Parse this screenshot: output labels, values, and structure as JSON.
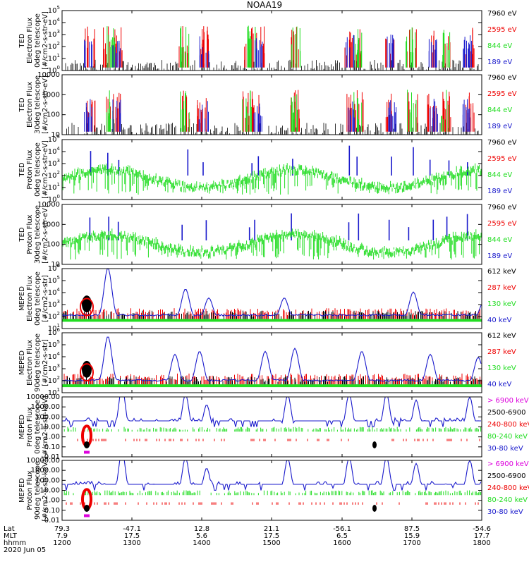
{
  "title": "NOAA19",
  "colors": {
    "black": "#000000",
    "red": "#ee0000",
    "green": "#22dd22",
    "blue": "#1a1acc",
    "magenta": "#dd00dd"
  },
  "chart_data": [
    {
      "type": "line",
      "ylabel": [
        "TED",
        "Electron Flux",
        "0deg telescope",
        "[#/cm2-s-str-eV]"
      ],
      "yscale": "log",
      "ylim": [
        1,
        100000
      ],
      "yticks": [
        "10^0",
        "10^1",
        "10^2",
        "10^3",
        "10^4",
        "10^5"
      ],
      "legend": [
        {
          "label": "7960 eV",
          "color": "black"
        },
        {
          "label": "2595 eV",
          "color": "red"
        },
        {
          "label": "844 eV",
          "color": "green"
        },
        {
          "label": "189 eV",
          "color": "blue"
        }
      ]
    },
    {
      "type": "line",
      "ylabel": [
        "TED",
        "Electron Flux",
        "30deg telescope",
        "[#/cm2-s-str-eV]"
      ],
      "yscale": "log",
      "ylim": [
        3,
        10000
      ],
      "yticks": [
        "10",
        "100",
        "1000",
        "10000"
      ],
      "legend": [
        {
          "label": "7960 eV",
          "color": "black"
        },
        {
          "label": "2595 eV",
          "color": "red"
        },
        {
          "label": "844 eV",
          "color": "green"
        },
        {
          "label": "189 eV",
          "color": "blue"
        }
      ]
    },
    {
      "type": "line",
      "ylabel": [
        "TED",
        "Proton Flux",
        "0deg telescope",
        "[#/cm2-s-str-eV]"
      ],
      "yscale": "log",
      "ylim": [
        1,
        100000
      ],
      "yticks": [
        "10^0",
        "10^1",
        "10^2",
        "10^3",
        "10^4",
        "10^5"
      ],
      "legend": [
        {
          "label": "7960 eV",
          "color": "black"
        },
        {
          "label": "2595 eV",
          "color": "red"
        },
        {
          "label": "844 eV",
          "color": "green"
        },
        {
          "label": "189 eV",
          "color": "blue"
        }
      ]
    },
    {
      "type": "line",
      "ylabel": [
        "TED",
        "Proton Flux",
        "30deg telescope",
        "[#/cm2-s-str-eV]"
      ],
      "yscale": "log",
      "ylim": [
        3,
        10000
      ],
      "yticks": [
        "10",
        "100",
        "1000",
        "10000"
      ],
      "legend": [
        {
          "label": "7960 eV",
          "color": "black"
        },
        {
          "label": "2595 eV",
          "color": "red"
        },
        {
          "label": "844 eV",
          "color": "green"
        },
        {
          "label": "189 eV",
          "color": "blue"
        }
      ]
    },
    {
      "type": "line",
      "ylabel": [
        "MEPED",
        "Electron Flux",
        "0deg telescope",
        "[#/cm2-s-str]"
      ],
      "yscale": "log",
      "ylim": [
        10,
        1000000
      ],
      "yticks": [
        "10^1",
        "10^2",
        "10^3",
        "10^4",
        "10^5",
        "10^6"
      ],
      "legend": [
        {
          "label": "612 keV",
          "color": "black"
        },
        {
          "label": "287 keV",
          "color": "red"
        },
        {
          "label": "130 keV",
          "color": "green"
        },
        {
          "label": "40 keV",
          "color": "blue"
        }
      ]
    },
    {
      "type": "line",
      "ylabel": [
        "MEPED",
        "Electron Flux",
        "90deg telescope",
        "[#/cm2-s-str]"
      ],
      "yscale": "log",
      "ylim": [
        10,
        1000000
      ],
      "yticks": [
        "10^1",
        "10^2",
        "10^3",
        "10^4",
        "10^5",
        "10^6"
      ],
      "legend": [
        {
          "label": "612 keV",
          "color": "black"
        },
        {
          "label": "287 keV",
          "color": "red"
        },
        {
          "label": "130 keV",
          "color": "green"
        },
        {
          "label": "40 keV",
          "color": "blue"
        }
      ]
    },
    {
      "type": "line",
      "ylabel": [
        "MEPED",
        "Proton Flux",
        "0deg telescope",
        "[#/cm2-s-str-keV]"
      ],
      "yscale": "log",
      "ylim": [
        0.01,
        10000
      ],
      "yticks": [
        "0.01",
        "0.10",
        "1.00",
        "10.00",
        "100.00",
        "1000.00",
        "10000.00"
      ],
      "legend": [
        {
          "label": "> 6900 keV",
          "color": "magenta"
        },
        {
          "label": "2500-6900",
          "color": "black"
        },
        {
          "label": "240-800 keV",
          "color": "red"
        },
        {
          "label": "80-240 keV",
          "color": "green"
        },
        {
          "label": "30-80 keV",
          "color": "blue"
        }
      ]
    },
    {
      "type": "line",
      "ylabel": [
        "MEPED",
        "Proton Flux",
        "90deg telescope",
        "[#/cm2-s-str-keV]"
      ],
      "yscale": "log",
      "ylim": [
        0.01,
        10000
      ],
      "yticks": [
        "0.01",
        "0.10",
        "1.00",
        "10.00",
        "100.00",
        "1000.00",
        "10000.00"
      ],
      "legend": [
        {
          "label": "> 6900 keV",
          "color": "magenta"
        },
        {
          "label": "2500-6900",
          "color": "black"
        },
        {
          "label": "240-800 keV",
          "color": "red"
        },
        {
          "label": "80-240 keV",
          "color": "green"
        },
        {
          "label": "30-80 keV",
          "color": "blue"
        }
      ]
    }
  ],
  "xaxis": {
    "row_labels": [
      "Lat",
      "MLT",
      "hhmm"
    ],
    "ticks": [
      {
        "lat": "79.3",
        "mlt": "7.9",
        "hhmm": "1200"
      },
      {
        "lat": "-47.1",
        "mlt": "17.5",
        "hhmm": "1300"
      },
      {
        "lat": "12.8",
        "mlt": "5.6",
        "hhmm": "1400"
      },
      {
        "lat": "21.1",
        "mlt": "17.5",
        "hhmm": "1500"
      },
      {
        "lat": "-56.1",
        "mlt": "6.5",
        "hhmm": "1600"
      },
      {
        "lat": "87.5",
        "mlt": "15.9",
        "hhmm": "1700"
      },
      {
        "lat": "-54.6",
        "mlt": "17.7",
        "hhmm": "1800"
      }
    ],
    "date": "2020 Jun 05"
  }
}
